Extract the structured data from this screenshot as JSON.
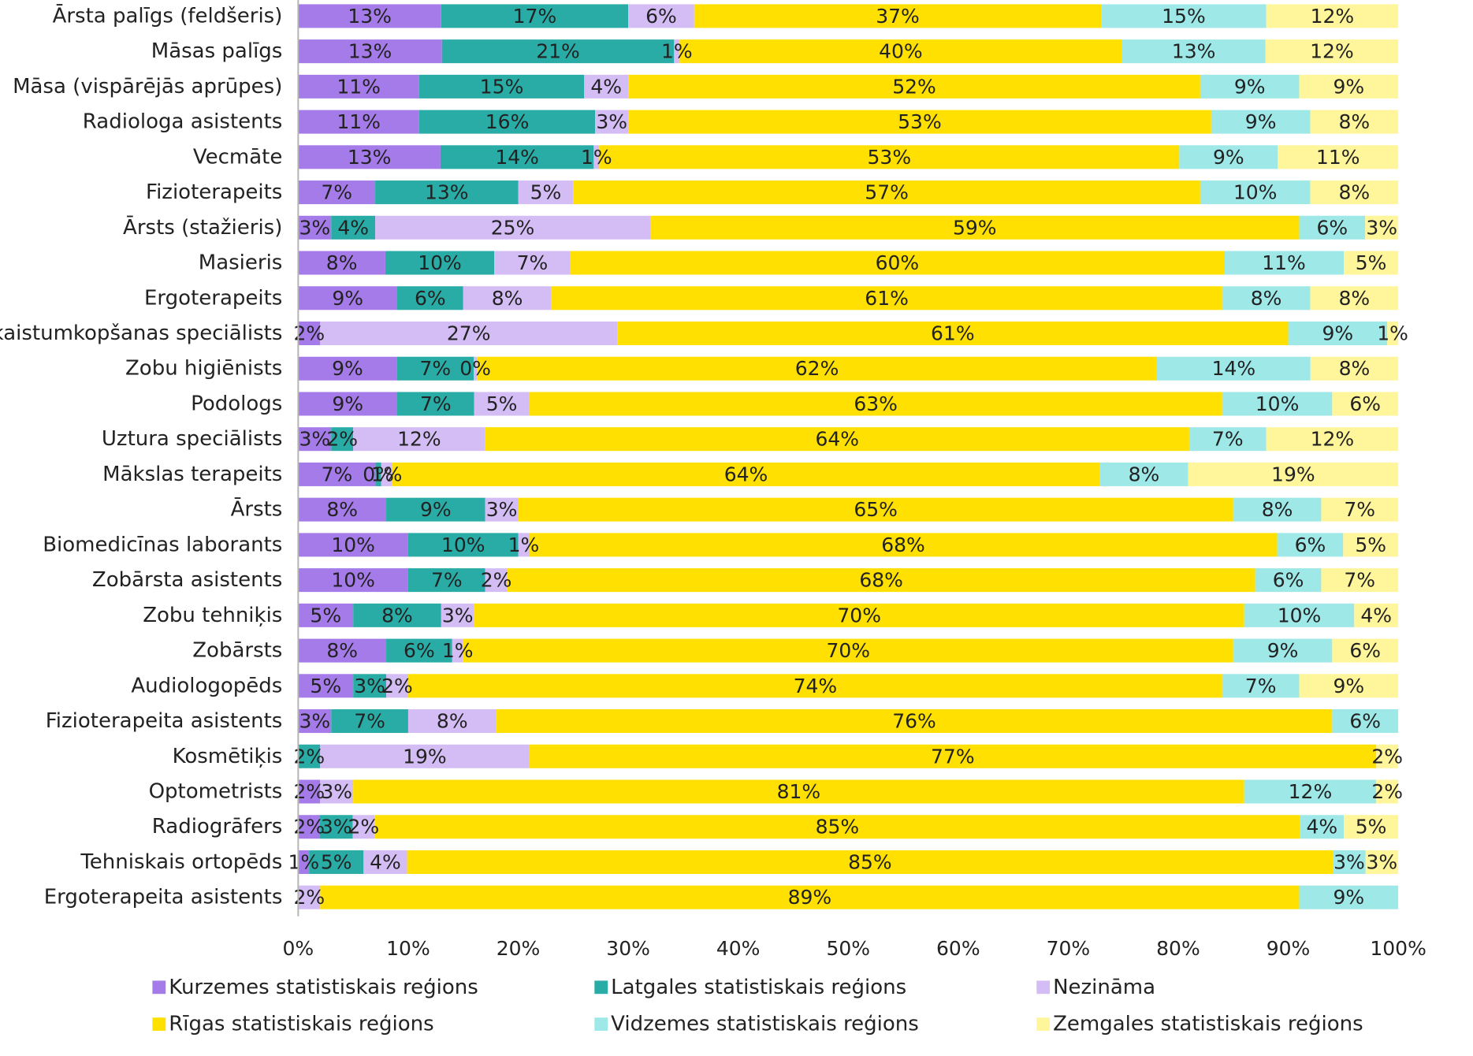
{
  "chart_data": {
    "type": "bar",
    "orientation": "horizontal",
    "stacked": "percent",
    "legend_position": "bottom",
    "grid": false,
    "xlim": [
      0,
      100
    ],
    "x_ticks": [
      "0%",
      "10%",
      "20%",
      "30%",
      "40%",
      "50%",
      "60%",
      "70%",
      "80%",
      "90%",
      "100%"
    ],
    "categories": [
      "Ārsta palīgs (feldšeris)",
      "Māsas palīgs",
      "Māsa (vispārējās aprūpes)",
      "Radiologa asistents",
      "Vecmāte",
      "Fizioterapeits",
      "Ārsts (stažieris)",
      "Masieris",
      "Ergoterapeits",
      "Skaistumkopšanas speciālists",
      "Zobu higiēnists",
      "Podologs",
      "Uztura speciālists",
      "Mākslas terapeits",
      "Ārsts",
      "Biomedicīnas laborants",
      "Zobārsta asistents",
      "Zobu tehniķis",
      "Zobārsts",
      "Audiologopēds",
      "Fizioterapeita asistents",
      "Kosmētiķis",
      "Optometrists",
      "Radiogrāfers",
      "Tehniskais ortopēds",
      "Ergoterapeita asistents"
    ],
    "series": [
      {
        "name": "Kurzemes statistiskais reģions",
        "color": "#a57be9",
        "values": [
          13,
          13,
          11,
          11,
          13,
          7,
          3,
          8,
          9,
          2,
          9,
          9,
          3,
          7,
          8,
          10,
          10,
          5,
          8,
          5,
          3,
          0,
          2,
          2,
          1,
          0
        ],
        "labels": [
          "13%",
          "13%",
          "11%",
          "11%",
          "13%",
          "7%",
          "3%",
          "8%",
          "9%",
          "2%",
          "9%",
          "9%",
          "3%",
          "7%",
          "8%",
          "10%",
          "10%",
          "5%",
          "8%",
          "5%",
          "3%",
          "",
          "2%",
          "2%",
          "1%",
          ""
        ]
      },
      {
        "name": "Latgales statistiskais reģions",
        "color": "#2aaca6",
        "values": [
          17,
          21,
          15,
          16,
          14,
          13,
          4,
          10,
          6,
          0,
          7,
          7,
          2,
          0.5,
          9,
          10,
          7,
          8,
          6,
          3,
          7,
          2,
          0,
          3,
          5,
          0
        ],
        "labels": [
          "17%",
          "21%",
          "15%",
          "16%",
          "14%",
          "13%",
          "4%",
          "10%",
          "6%",
          "",
          "7%",
          "7%",
          "2%",
          "0%",
          "9%",
          "10%",
          "7%",
          "8%",
          "6%",
          "3%",
          "7%",
          "2%",
          "",
          "3%",
          "5%",
          ""
        ]
      },
      {
        "name": "Nezināma",
        "color": "#d4bdf5",
        "values": [
          6,
          0.5,
          4,
          3,
          0.5,
          5,
          25,
          7,
          8,
          27,
          0.3,
          5,
          12,
          1,
          3,
          1,
          2,
          3,
          1,
          2,
          8,
          19,
          3,
          2,
          4,
          2
        ],
        "labels": [
          "6%",
          "1%",
          "4%",
          "3%",
          "1%",
          "5%",
          "25%",
          "7%",
          "8%",
          "27%",
          "0%",
          "5%",
          "12%",
          "1%",
          "3%",
          "1%",
          "2%",
          "3%",
          "1%",
          "2%",
          "8%",
          "19%",
          "3%",
          "2%",
          "4%",
          "2%"
        ]
      },
      {
        "name": "Rīgas statistiskais reģions",
        "color": "#ffe000",
        "values": [
          37,
          40,
          52,
          53,
          53,
          57,
          59,
          60,
          61,
          61,
          62,
          63,
          64,
          64,
          65,
          68,
          68,
          70,
          70,
          74,
          76,
          77,
          81,
          85,
          85,
          89
        ],
        "labels": [
          "37%",
          "40%",
          "52%",
          "53%",
          "53%",
          "57%",
          "59%",
          "60%",
          "61%",
          "61%",
          "62%",
          "63%",
          "64%",
          "64%",
          "65%",
          "68%",
          "68%",
          "70%",
          "70%",
          "74%",
          "76%",
          "77%",
          "81%",
          "85%",
          "85%",
          "89%"
        ]
      },
      {
        "name": "Vidzemes statistiskais reģions",
        "color": "#9ee8e8",
        "values": [
          15,
          13,
          9,
          9,
          9,
          10,
          6,
          11,
          8,
          9,
          14,
          10,
          7,
          8,
          8,
          6,
          6,
          10,
          9,
          7,
          6,
          0,
          12,
          4,
          3,
          9
        ],
        "labels": [
          "15%",
          "13%",
          "9%",
          "9%",
          "9%",
          "10%",
          "6%",
          "11%",
          "8%",
          "9%",
          "14%",
          "10%",
          "7%",
          "8%",
          "8%",
          "6%",
          "6%",
          "10%",
          "9%",
          "7%",
          "6%",
          "",
          "12%",
          "4%",
          "3%",
          "9%"
        ]
      },
      {
        "name": "Zemgales statistiskais reģions",
        "color": "#fff59a",
        "values": [
          12,
          12,
          9,
          8,
          11,
          8,
          3,
          5,
          8,
          1,
          8,
          6,
          12,
          19,
          7,
          5,
          7,
          4,
          6,
          9,
          0,
          2,
          2,
          5,
          3,
          0
        ],
        "labels": [
          "12%",
          "12%",
          "9%",
          "8%",
          "11%",
          "8%",
          "3%",
          "5%",
          "8%",
          "1%",
          "8%",
          "6%",
          "12%",
          "19%",
          "7%",
          "5%",
          "7%",
          "4%",
          "6%",
          "9%",
          "",
          "2%",
          "2%",
          "5%",
          "3%",
          ""
        ]
      }
    ]
  }
}
